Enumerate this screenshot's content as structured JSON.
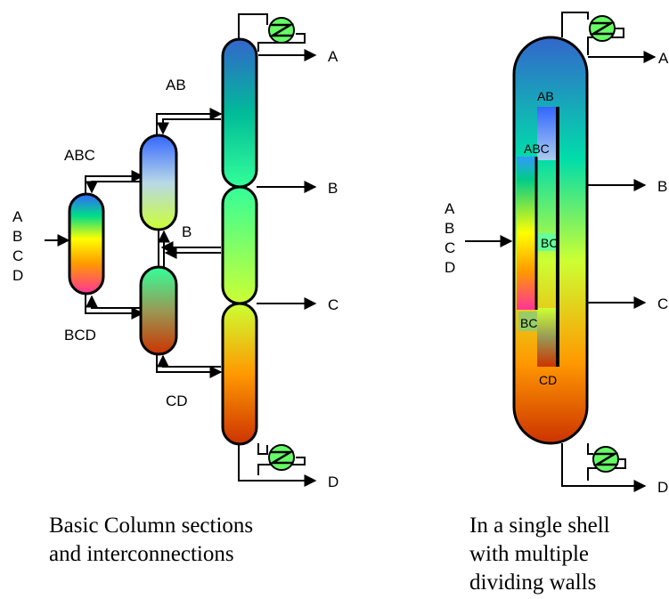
{
  "left": {
    "feed": [
      "A",
      "B",
      "C",
      "D"
    ],
    "streams": {
      "abc": "ABC",
      "bcd": "BCD",
      "ab": "AB",
      "b_mid": "B",
      "cd": "CD",
      "a": "A",
      "b": "B",
      "c": "C",
      "d": "D"
    },
    "caption": [
      "Basic Column sections",
      "and interconnections"
    ]
  },
  "right": {
    "feed": [
      "A",
      "B",
      "C",
      "D"
    ],
    "zones": {
      "ab": "AB",
      "abc": "ABC",
      "bc_top": "BC",
      "bc_bottom": "BC",
      "cd": "CD"
    },
    "products": {
      "a": "A",
      "b": "B",
      "c": "C",
      "d": "D"
    },
    "caption": [
      "In a single shell",
      "with multiple",
      "dividing walls"
    ]
  },
  "colors": {
    "blue": "#3366cc",
    "teal": "#00d2a5",
    "green": "#33ff99",
    "lime": "#ccff33",
    "yellow": "#ffff00",
    "orange": "#ff9900",
    "magenta": "#ff3399",
    "red": "#cc3300",
    "condenser": "#66ff66"
  }
}
